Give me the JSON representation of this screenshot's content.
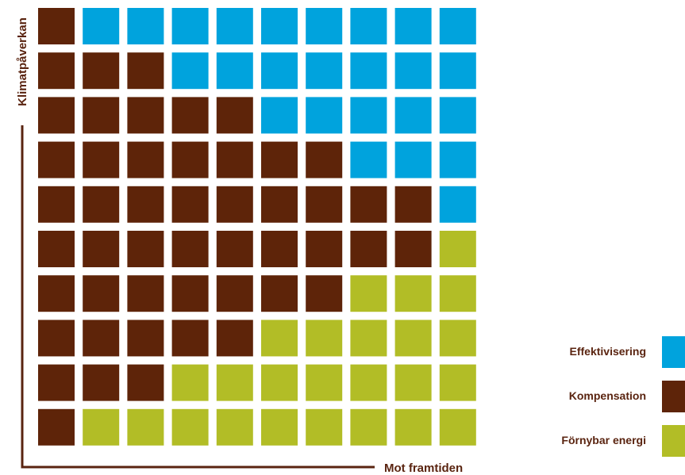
{
  "chart_data": {
    "type": "waffle",
    "grid": {
      "rows": 10,
      "cols": 10
    },
    "categories": [
      "Effektivisering",
      "Kompensation",
      "Förnybar energi"
    ],
    "colors": {
      "Effektivisering": "#00a3dd",
      "Kompensation": "#5e2409",
      "Förnybar energi": "#b2bd26",
      "axis": "#5a2410"
    },
    "rows_top_to_bottom": [
      {
        "Kompensation": 1,
        "Effektivisering": 9,
        "Förnybar energi": 0
      },
      {
        "Kompensation": 3,
        "Effektivisering": 7,
        "Förnybar energi": 0
      },
      {
        "Kompensation": 5,
        "Effektivisering": 5,
        "Förnybar energi": 0
      },
      {
        "Kompensation": 7,
        "Effektivisering": 3,
        "Förnybar energi": 0
      },
      {
        "Kompensation": 9,
        "Effektivisering": 1,
        "Förnybar energi": 0
      },
      {
        "Kompensation": 9,
        "Effektivisering": 0,
        "Förnybar energi": 1
      },
      {
        "Kompensation": 7,
        "Effektivisering": 0,
        "Förnybar energi": 3
      },
      {
        "Kompensation": 5,
        "Effektivisering": 0,
        "Förnybar energi": 5
      },
      {
        "Kompensation": 3,
        "Effektivisering": 0,
        "Förnybar energi": 7
      },
      {
        "Kompensation": 1,
        "Effektivisering": 0,
        "Förnybar energi": 9
      }
    ],
    "xlabel": "Mot framtiden",
    "ylabel": "Klimatpåverkan",
    "legend": {
      "position": "bottom-right",
      "entries": [
        "Effektivisering",
        "Kompensation",
        "Förnybar energi"
      ]
    }
  }
}
